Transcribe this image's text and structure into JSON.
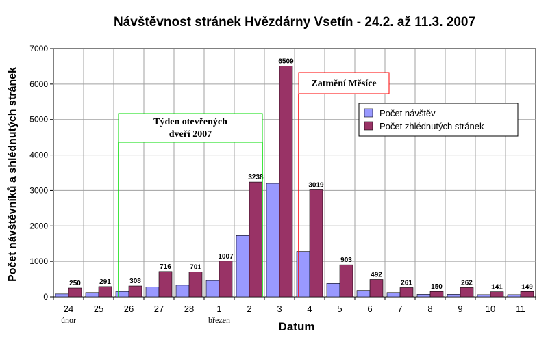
{
  "chart_data": {
    "type": "bar",
    "title": "Návštěvnost stránek Hvězdárny Vsetín - 24.2. až 11.3. 2007",
    "xlabel": "Datum",
    "ylabel": "Počet návštěvníků a shlédnutých stránek",
    "ylim": [
      0,
      7000
    ],
    "yticks": [
      0,
      1000,
      2000,
      3000,
      4000,
      5000,
      6000,
      7000
    ],
    "grid": true,
    "legend_position": "right",
    "categories": [
      "24",
      "25",
      "26",
      "27",
      "28",
      "1",
      "2",
      "3",
      "4",
      "5",
      "6",
      "7",
      "8",
      "9",
      "10",
      "11"
    ],
    "month_labels": [
      {
        "category": "24",
        "text": "únor"
      },
      {
        "category": "1",
        "text": "březen"
      }
    ],
    "series": [
      {
        "name": "Počet návštěv",
        "color": "#9999ff",
        "values": [
          80,
          120,
          150,
          280,
          330,
          460,
          1730,
          3200,
          1280,
          380,
          180,
          120,
          70,
          70,
          60,
          60
        ]
      },
      {
        "name": "Počet zhlédnutých stránek",
        "color": "#993366",
        "values": [
          250,
          291,
          308,
          716,
          701,
          1007,
          3238,
          6509,
          3019,
          903,
          492,
          261,
          150,
          262,
          141,
          149
        ]
      }
    ],
    "data_labels_series": 1,
    "annotations": [
      {
        "text_lines": [
          "Týden otevřených",
          "dveří 2007"
        ],
        "border_color": "#00dd00",
        "from_category": "26",
        "to_category": "2"
      },
      {
        "text_lines": [
          "Zatmění Měsíce"
        ],
        "border_color": "#ff0000",
        "at_category": "4"
      }
    ]
  }
}
